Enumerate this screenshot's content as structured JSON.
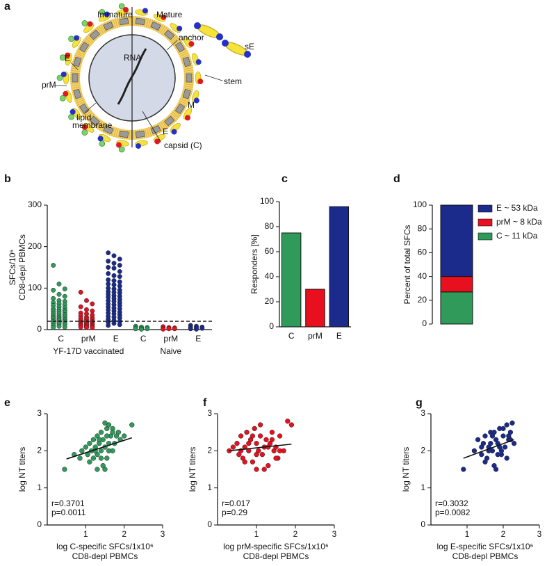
{
  "diagram": {
    "label": "a",
    "labels": [
      "Immature",
      "Mature",
      "anchor",
      "sE",
      "E",
      "prM",
      "RNA",
      "stem",
      "M",
      "lipid",
      "membrane",
      "E",
      "capsid (C)"
    ]
  },
  "chart_data": [
    {
      "type": "strip",
      "label": "b",
      "ylabel": [
        "SFCs/10⁶",
        "CD8-depl PBMCs"
      ],
      "categories": [
        "C",
        "prM",
        "E",
        "C",
        "prM",
        "E"
      ],
      "group_labels": [
        "YF-17D vaccinated",
        "Naive"
      ],
      "colors": [
        "#2f9a5a",
        "#e8101e",
        "#1a2b8c",
        "#2f9a5a",
        "#e8101e",
        "#1a2b8c"
      ],
      "category_values": [
        [
          155,
          110,
          98,
          95,
          85,
          80,
          75,
          70,
          68,
          65,
          62,
          60,
          58,
          55,
          52,
          50,
          48,
          46,
          45,
          43,
          42,
          40,
          38,
          36,
          35,
          33,
          32,
          30,
          29,
          28,
          27,
          25,
          24,
          23,
          22,
          20,
          19,
          18,
          16,
          15,
          14,
          12,
          10,
          8,
          6,
          5
        ],
        [
          90,
          70,
          62,
          55,
          48,
          45,
          40,
          38,
          35,
          33,
          30,
          28,
          26,
          25,
          24,
          22,
          20,
          19,
          18,
          17,
          16,
          15,
          14,
          13,
          12,
          11,
          10,
          9,
          8,
          7,
          6,
          5,
          4
        ],
        [
          185,
          178,
          170,
          165,
          160,
          155,
          150,
          148,
          140,
          135,
          130,
          128,
          120,
          118,
          115,
          110,
          108,
          105,
          100,
          98,
          95,
          92,
          90,
          88,
          85,
          82,
          80,
          78,
          75,
          72,
          70,
          68,
          65,
          62,
          60,
          58,
          55,
          52,
          50,
          48,
          45,
          42,
          40,
          38,
          35,
          32,
          30,
          28,
          25,
          22,
          20,
          18,
          15,
          12,
          10
        ],
        [
          8,
          6,
          5,
          4,
          3,
          2,
          2,
          1
        ],
        [
          7,
          5,
          4,
          3,
          2,
          2,
          1
        ],
        [
          10,
          8,
          6,
          5,
          4,
          3,
          2,
          1
        ]
      ],
      "reference_line": 20,
      "ylim": [
        0,
        300
      ],
      "yticks": [
        0,
        100,
        200,
        300
      ]
    },
    {
      "type": "bar",
      "label": "c",
      "ylabel": "Responders [%]",
      "categories": [
        "C",
        "prM",
        "E"
      ],
      "values": [
        75,
        30,
        96
      ],
      "colors": [
        "#2f9a5a",
        "#e8101e",
        "#1a2b8c"
      ],
      "ylim": [
        0,
        100
      ],
      "yticks": [
        0,
        20,
        40,
        60,
        80,
        100
      ]
    },
    {
      "type": "stacked",
      "label": "d",
      "ylabel": "Percent of total SFCs",
      "series": [
        {
          "name": "C ~ 11 kDa",
          "color": "#2f9a5a",
          "values": [
            27
          ]
        },
        {
          "name": "prM ~ 8 kDa",
          "color": "#e8101e",
          "values": [
            13
          ]
        },
        {
          "name": "E ~ 53 kDa",
          "color": "#1a2b8c",
          "values": [
            60
          ]
        }
      ],
      "ylim": [
        0,
        100
      ],
      "yticks": [
        0,
        20,
        40,
        60,
        80,
        100
      ]
    },
    {
      "type": "scatter",
      "label": "e",
      "color": "#2f9a5a",
      "ylabel": "log NT titers",
      "xlabel": [
        "log C-specific SFCs/1x10⁶",
        "CD8-depl PBMCs"
      ],
      "annotations": [
        "r=0.3701",
        "p=0.0011"
      ],
      "x": [
        0.45,
        0.7,
        0.85,
        0.9,
        1.0,
        1.05,
        1.1,
        1.15,
        1.2,
        1.2,
        1.25,
        1.3,
        1.3,
        1.35,
        1.4,
        1.4,
        1.45,
        1.5,
        1.5,
        1.55,
        1.55,
        1.6,
        1.6,
        1.65,
        1.7,
        1.7,
        1.75,
        1.8,
        1.85,
        1.9,
        2.0,
        2.2,
        1.3,
        1.5,
        1.1,
        1.6,
        1.45,
        1.35,
        1.7,
        1.25,
        1.55,
        1.4
      ],
      "y": [
        1.5,
        1.9,
        1.8,
        2.0,
        2.1,
        1.9,
        2.2,
        2.0,
        2.3,
        1.8,
        2.1,
        2.4,
        1.9,
        2.2,
        2.5,
        2.0,
        2.3,
        1.5,
        2.1,
        2.6,
        1.8,
        2.2,
        2.7,
        2.4,
        2.0,
        2.6,
        2.2,
        2.4,
        2.5,
        2.3,
        2.4,
        2.7,
        1.5,
        2.75,
        1.7,
        2.0,
        1.6,
        2.3,
        2.5,
        2.0,
        2.4,
        1.8
      ],
      "fit": {
        "x": [
          0.5,
          2.2
        ],
        "y": [
          1.78,
          2.35
        ]
      },
      "xlim": [
        0,
        3
      ],
      "xticks": [
        1,
        2,
        3
      ],
      "ylim": [
        0,
        3
      ],
      "yticks": [
        0,
        1,
        2,
        3
      ]
    },
    {
      "type": "scatter",
      "label": "f",
      "color": "#e8101e",
      "ylabel": "log NT titers",
      "xlabel": [
        "log prM-specific SFCs/1x10⁶",
        "CD8-depl PBMCs"
      ],
      "annotations": [
        "r=0.017",
        "p=0.29"
      ],
      "x": [
        0.3,
        0.4,
        0.5,
        0.55,
        0.6,
        0.65,
        0.7,
        0.75,
        0.8,
        0.85,
        0.9,
        0.95,
        1.0,
        1.0,
        1.05,
        1.1,
        1.15,
        1.2,
        1.25,
        1.3,
        1.35,
        1.4,
        1.45,
        1.5,
        1.55,
        1.6,
        1.7,
        1.8,
        1.9,
        0.6,
        0.9,
        1.2,
        1.5,
        0.8,
        1.1,
        1.4,
        1.0,
        0.7,
        1.3,
        1.6
      ],
      "y": [
        2.0,
        2.1,
        2.2,
        1.9,
        2.4,
        1.8,
        2.1,
        2.5,
        2.0,
        2.3,
        1.7,
        2.6,
        2.2,
        1.5,
        2.0,
        2.4,
        1.9,
        2.1,
        2.3,
        1.6,
        2.2,
        2.5,
        2.0,
        2.1,
        1.8,
        2.4,
        2.0,
        2.8,
        2.7,
        2.0,
        2.4,
        1.5,
        1.8,
        2.2,
        2.7,
        2.3,
        1.9,
        1.7,
        2.1,
        2.0
      ],
      "fit": {
        "x": [
          0.3,
          1.9
        ],
        "y": [
          2.0,
          2.18
        ]
      },
      "xlim": [
        0,
        3
      ],
      "xticks": [
        1,
        2,
        3
      ],
      "ylim": [
        0,
        3
      ],
      "yticks": [
        0,
        1,
        2,
        3
      ]
    },
    {
      "type": "scatter",
      "label": "g",
      "color": "#1a2b8c",
      "ylabel": "log NT titers",
      "xlabel": [
        "log E-specific SFCs/1x10⁶",
        "CD8-depl PBMCs"
      ],
      "annotations": [
        "r=0.3032",
        "p=0.0082"
      ],
      "x": [
        0.9,
        1.2,
        1.3,
        1.4,
        1.45,
        1.5,
        1.55,
        1.6,
        1.65,
        1.7,
        1.75,
        1.8,
        1.85,
        1.9,
        1.95,
        2.0,
        2.05,
        2.1,
        2.15,
        2.2,
        2.25,
        2.3,
        1.5,
        1.6,
        1.7,
        1.8,
        1.9,
        2.0,
        2.1,
        2.2,
        1.4,
        1.75,
        1.95,
        2.15,
        1.65,
        1.85
      ],
      "y": [
        1.5,
        2.0,
        2.3,
        1.9,
        2.2,
        2.4,
        1.8,
        2.1,
        2.5,
        2.0,
        1.6,
        2.3,
        2.2,
        2.6,
        1.9,
        2.4,
        2.1,
        2.7,
        2.3,
        2.5,
        2.75,
        2.2,
        1.7,
        2.0,
        2.4,
        1.5,
        2.1,
        2.6,
        1.8,
        2.3,
        2.1,
        2.5,
        2.0,
        2.4,
        2.2,
        1.9
      ],
      "fit": {
        "x": [
          0.9,
          2.3
        ],
        "y": [
          1.8,
          2.3
        ]
      },
      "xlim": [
        0,
        3
      ],
      "xticks": [
        1,
        2,
        3
      ],
      "ylim": [
        0,
        3
      ],
      "yticks": [
        0,
        1,
        2,
        3
      ]
    }
  ]
}
